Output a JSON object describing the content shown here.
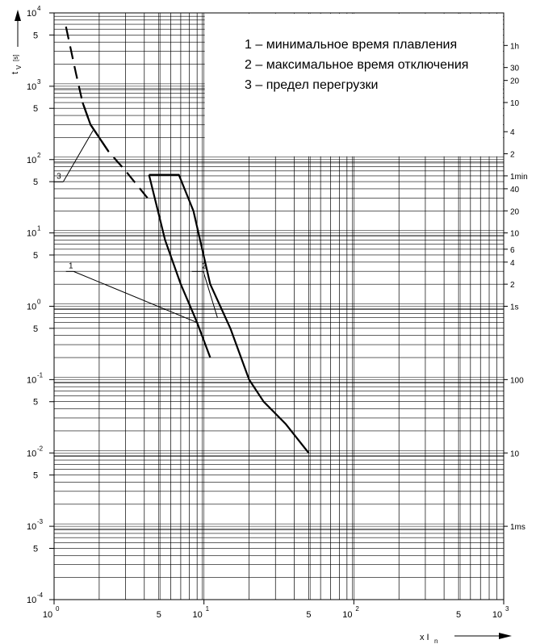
{
  "chart_data": {
    "type": "line",
    "xscale": "log",
    "yscale": "log",
    "xlim": [
      1,
      1000
    ],
    "ylim": [
      0.0001,
      10000
    ],
    "grid": true,
    "ylabel_main": "t",
    "ylabel_sub": "V",
    "ylabel_unit": "[s]",
    "xlabel_main": "x I",
    "xlabel_sub": "n",
    "x_major_ticks": [
      {
        "value": 1,
        "base": "10",
        "exp": "0"
      },
      {
        "value": 10,
        "base": "10",
        "exp": "1"
      },
      {
        "value": 100,
        "base": "10",
        "exp": "2"
      },
      {
        "value": 1000,
        "base": "10",
        "exp": "3"
      }
    ],
    "x_minor_labels": [
      {
        "value": 5,
        "label": "5"
      },
      {
        "value": 50,
        "label": "5"
      },
      {
        "value": 500,
        "label": "5"
      }
    ],
    "y_major_ticks": [
      {
        "value": 10000,
        "base": "10",
        "exp": "4"
      },
      {
        "value": 1000,
        "base": "10",
        "exp": "3"
      },
      {
        "value": 100,
        "base": "10",
        "exp": "2"
      },
      {
        "value": 10,
        "base": "10",
        "exp": "1"
      },
      {
        "value": 1,
        "base": "10",
        "exp": "0"
      },
      {
        "value": 0.1,
        "base": "10",
        "exp": "-1"
      },
      {
        "value": 0.01,
        "base": "10",
        "exp": "-2"
      },
      {
        "value": 0.001,
        "base": "10",
        "exp": "-3"
      },
      {
        "value": 0.0001,
        "base": "10",
        "exp": "-4"
      }
    ],
    "y_minor_labels": [
      {
        "value": 5000,
        "label": "5"
      },
      {
        "value": 500,
        "label": "5"
      },
      {
        "value": 50,
        "label": "5"
      },
      {
        "value": 5,
        "label": "5"
      },
      {
        "value": 0.5,
        "label": "5"
      },
      {
        "value": 0.05,
        "label": "5"
      },
      {
        "value": 0.005,
        "label": "5"
      },
      {
        "value": 0.0005,
        "label": "5"
      }
    ],
    "right_axis_labels": [
      {
        "value": 3600,
        "label": "1h"
      },
      {
        "value": 1800,
        "label": "30"
      },
      {
        "value": 1200,
        "label": "20"
      },
      {
        "value": 600,
        "label": "10"
      },
      {
        "value": 240,
        "label": "4"
      },
      {
        "value": 120,
        "label": "2"
      },
      {
        "value": 60,
        "label": "1min"
      },
      {
        "value": 40,
        "label": "40"
      },
      {
        "value": 20,
        "label": "20"
      },
      {
        "value": 10,
        "label": "10"
      },
      {
        "value": 6,
        "label": "6"
      },
      {
        "value": 4,
        "label": "4"
      },
      {
        "value": 2,
        "label": "2"
      },
      {
        "value": 1,
        "label": "1s"
      },
      {
        "value": 0.1,
        "label": "100"
      },
      {
        "value": 0.01,
        "label": "10"
      },
      {
        "value": 0.001,
        "label": "1ms"
      }
    ],
    "legend": [
      "1 – минимальное время плавления",
      "2 – максимальное время отключения",
      "3 – предел перегрузки"
    ],
    "series": [
      {
        "label": "1",
        "style": "solid",
        "points": [
          [
            4.3,
            62
          ],
          [
            5.5,
            8
          ],
          [
            7,
            2
          ],
          [
            9,
            0.6
          ],
          [
            11,
            0.2
          ]
        ]
      },
      {
        "label": "2",
        "style": "solid",
        "points": [
          [
            4.3,
            62
          ],
          [
            6.8,
            62
          ],
          [
            8.5,
            20
          ],
          [
            11,
            2
          ],
          [
            15,
            0.5
          ],
          [
            20,
            0.1
          ],
          [
            25,
            0.05
          ],
          [
            35,
            0.025
          ],
          [
            50,
            0.01
          ]
        ]
      },
      {
        "label": "3",
        "style": "dashed",
        "points": [
          [
            1.2,
            6500
          ],
          [
            1.4,
            1500
          ],
          [
            1.55,
            600
          ],
          [
            1.75,
            300
          ],
          [
            2.3,
            130
          ],
          [
            3,
            70
          ],
          [
            4.2,
            30
          ]
        ]
      },
      {
        "label": "",
        "style": "solid",
        "points": [
          [
            1.55,
            600
          ],
          [
            1.75,
            300
          ],
          [
            2.3,
            130
          ]
        ]
      }
    ],
    "annotations": [
      {
        "label": "1",
        "text_x": 1.25,
        "text_y": 3.3,
        "shelf_from": 1.2,
        "shelf_to": 1.35,
        "target_x": 9,
        "target_y": 0.6
      },
      {
        "label": "2",
        "text_x": 9.7,
        "text_y": 3.3,
        "shelf_from": 8.3,
        "shelf_to": 9.9,
        "target_x": 12.3,
        "target_y": 0.7
      },
      {
        "label": "3",
        "text_x": 1.04,
        "text_y": 55,
        "shelf_from": 1.0,
        "shelf_to": 1.15,
        "target_x": 1.82,
        "target_y": 250
      }
    ]
  }
}
